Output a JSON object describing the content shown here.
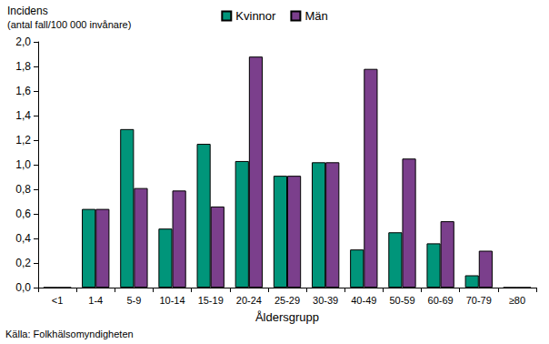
{
  "chart_data": {
    "type": "bar",
    "ylabel": "Incidens",
    "ylabel_sub": "(antal fall/100 000 invånare)",
    "xlabel": "Åldersgrupp",
    "source": "Källa: Folkhälsomyndigheten",
    "categories": [
      "<1",
      "1-4",
      "5-9",
      "10-14",
      "15-19",
      "20-24",
      "25-29",
      "30-39",
      "40-49",
      "50-59",
      "60-69",
      "70-79",
      "≥80"
    ],
    "series": [
      {
        "name": "Kvinnor",
        "color": "#00957a",
        "values": [
          0,
          0.64,
          1.29,
          0.48,
          1.17,
          1.03,
          0.91,
          1.02,
          0.31,
          0.45,
          0.36,
          0.1,
          0
        ]
      },
      {
        "name": "Män",
        "color": "#7b3f8c",
        "values": [
          0,
          0.64,
          0.81,
          0.79,
          0.66,
          1.88,
          0.91,
          1.02,
          1.78,
          1.05,
          0.54,
          0.3,
          0
        ]
      }
    ],
    "ylim": [
      0,
      2.0
    ],
    "yticks": [
      {
        "value": 0,
        "label": "0,0"
      },
      {
        "value": 0.2,
        "label": "0,2"
      },
      {
        "value": 0.4,
        "label": "0,4"
      },
      {
        "value": 0.6,
        "label": "0,6"
      },
      {
        "value": 0.8,
        "label": "0,8"
      },
      {
        "value": 1.0,
        "label": "1,0"
      },
      {
        "value": 1.2,
        "label": "1,2"
      },
      {
        "value": 1.4,
        "label": "1,4"
      },
      {
        "value": 1.6,
        "label": "1,6"
      },
      {
        "value": 1.8,
        "label": "1,8"
      },
      {
        "value": 2.0,
        "label": "2,0"
      }
    ],
    "grid": false,
    "legend": "top"
  }
}
